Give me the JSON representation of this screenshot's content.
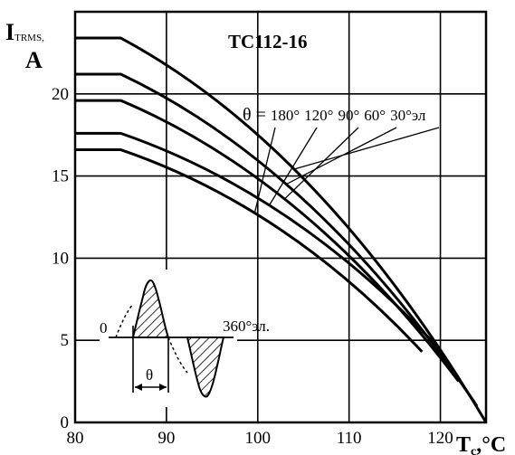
{
  "chart_data": {
    "type": "line",
    "title": "TC112-16",
    "xlabel": {
      "main": "T",
      "sub": "c",
      "unit": ",°C"
    },
    "ylabel": {
      "main": "I",
      "sub": "TRMS,",
      "unit": "A"
    },
    "xlim": [
      80,
      125
    ],
    "ylim": [
      0,
      25
    ],
    "x_ticks": [
      80,
      90,
      100,
      110,
      120
    ],
    "y_ticks": [
      0,
      5,
      10,
      15,
      20
    ],
    "grid": true,
    "series": [
      {
        "name": "180°",
        "points": [
          [
            80,
            16.6
          ],
          [
            85,
            16.6
          ],
          [
            118,
            4.3
          ]
        ]
      },
      {
        "name": "120°",
        "points": [
          [
            80,
            17.6
          ],
          [
            85,
            17.6
          ],
          [
            120,
            4.4
          ]
        ]
      },
      {
        "name": "90°",
        "points": [
          [
            80,
            19.6
          ],
          [
            85,
            19.6
          ],
          [
            122,
            2.5
          ]
        ]
      },
      {
        "name": "60°",
        "points": [
          [
            80,
            21.2
          ],
          [
            85,
            21.2
          ],
          [
            124,
            1.0
          ]
        ]
      },
      {
        "name": "30°эл",
        "points": [
          [
            80,
            23.4
          ],
          [
            85,
            23.4
          ],
          [
            125,
            0
          ]
        ]
      }
    ],
    "legend": {
      "prefix": "θ = ",
      "labels": [
        "180°",
        "120°",
        "90°",
        "60°",
        "30°эл"
      ]
    },
    "inset": {
      "zero_label": "0",
      "end_label": "360°эл.",
      "theta_label": "θ"
    }
  }
}
